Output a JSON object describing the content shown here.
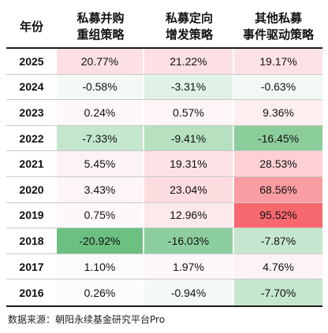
{
  "header": {
    "year": "年份",
    "col1_line1": "私募并购",
    "col1_line2": "重组策略",
    "col2_line1": "私募定向",
    "col2_line2": "增发策略",
    "col3_line1": "其他私募",
    "col3_line2": "事件驱动策略"
  },
  "rows": [
    {
      "year": "2025",
      "v": [
        "20.77%",
        "21.22%",
        "19.17%"
      ],
      "bg": [
        "#fde0e3",
        "#fde0e3",
        "#fde2e5"
      ]
    },
    {
      "year": "2024",
      "v": [
        "-0.58%",
        "-3.31%",
        "-0.63%"
      ],
      "bg": [
        "#f3f9f4",
        "#e0f1e5",
        "#f2f8f3"
      ]
    },
    {
      "year": "2023",
      "v": [
        "0.24%",
        "0.57%",
        "9.36%"
      ],
      "bg": [
        "#fdf8f9",
        "#fdf5f6",
        "#fdeff0"
      ]
    },
    {
      "year": "2022",
      "v": [
        "-7.33%",
        "-9.41%",
        "-16.45%"
      ],
      "bg": [
        "#c4e6cd",
        "#b7e0c1",
        "#8ccd9c"
      ]
    },
    {
      "year": "2021",
      "v": [
        "5.45%",
        "19.31%",
        "28.53%"
      ],
      "bg": [
        "#fdf3f5",
        "#fde3e6",
        "#fcd0d4"
      ]
    },
    {
      "year": "2020",
      "v": [
        "3.43%",
        "23.04%",
        "68.56%"
      ],
      "bg": [
        "#fdf5f6",
        "#fddcdf",
        "#f99da2"
      ]
    },
    {
      "year": "2019",
      "v": [
        "0.75%",
        "12.96%",
        "95.52%"
      ],
      "bg": [
        "#fdf9fa",
        "#fde9eb",
        "#f7696f"
      ]
    },
    {
      "year": "2018",
      "v": [
        "-20.92%",
        "-16.03%",
        "-7.87%"
      ],
      "bg": [
        "#6cc081",
        "#8dce9e",
        "#c6e7cf"
      ]
    },
    {
      "year": "2017",
      "v": [
        "1.10%",
        "1.97%",
        "4.76%"
      ],
      "bg": [
        "#fdfafa",
        "#fdf7f8",
        "#fdf3f4"
      ]
    },
    {
      "year": "2016",
      "v": [
        "0.26%",
        "-0.94%",
        "-7.70%"
      ],
      "bg": [
        "#fdfbfb",
        "#f4f9f5",
        "#c5e7ce"
      ]
    }
  ],
  "source": "数据来源：朝阳永续基金研究平台Pro"
}
